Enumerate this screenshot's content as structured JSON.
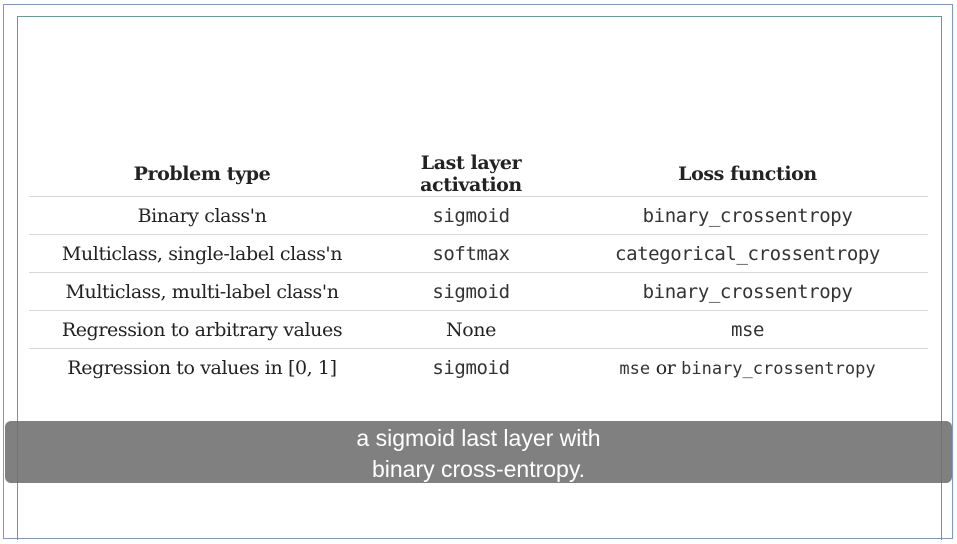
{
  "table": {
    "headers": [
      "Problem type",
      "Last layer activation",
      "Loss function"
    ],
    "rows": [
      {
        "problem": "Binary class'n",
        "activation": "sigmoid",
        "activation_mono": true,
        "loss": "binary_crossentropy"
      },
      {
        "problem": "Multiclass, single-label class'n",
        "activation": "softmax",
        "activation_mono": true,
        "loss": "categorical_crossentropy"
      },
      {
        "problem": "Multiclass, multi-label class'n",
        "activation": "sigmoid",
        "activation_mono": true,
        "loss": "binary_crossentropy"
      },
      {
        "problem": "Regression to arbitrary values",
        "activation": "None",
        "activation_mono": false,
        "loss": "mse"
      },
      {
        "problem": "Regression to values in [0, 1]",
        "activation": "sigmoid",
        "activation_mono": true,
        "loss_parts": [
          "mse",
          "or",
          "binary_crossentropy"
        ]
      }
    ]
  },
  "caption": {
    "line1": "a sigmoid last layer with",
    "line2": "binary cross-entropy."
  }
}
